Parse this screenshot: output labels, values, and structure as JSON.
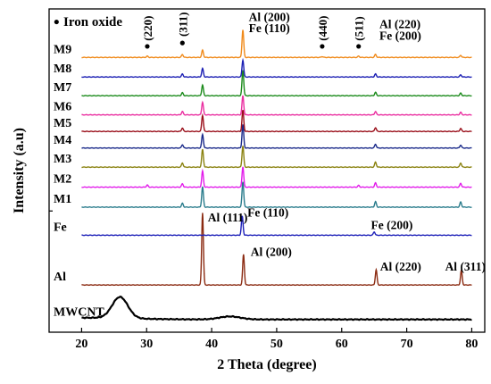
{
  "chart_data": {
    "type": "line",
    "xlabel": "2 Theta (degree)",
    "ylabel": "Intensity (a.u)",
    "xlim": [
      15,
      82
    ],
    "x_ticks": [
      20,
      30,
      40,
      50,
      60,
      70,
      80
    ],
    "grid": false,
    "legend": {
      "symbol": "•",
      "label": "Iron oxide",
      "placement": "top-left"
    },
    "series": [
      {
        "name": "MWCNT",
        "color": "#000000",
        "kind": "cnt",
        "baseline": 0,
        "peaks": [
          {
            "x": 25.9,
            "h": 0.5
          },
          {
            "x": 42.8,
            "h": 0.07
          }
        ]
      },
      {
        "name": "Al",
        "color": "#8b2b12",
        "kind": "xrd",
        "baseline": 0.81,
        "peaks": [
          {
            "x": 38.6,
            "h": 1.7
          },
          {
            "x": 44.9,
            "h": 0.72
          },
          {
            "x": 65.3,
            "h": 0.36
          },
          {
            "x": 78.4,
            "h": 0.34
          }
        ]
      },
      {
        "name": "Fe",
        "color": "#1c1fb8",
        "kind": "xrd",
        "baseline": 1.98,
        "peaks": [
          {
            "x": 44.7,
            "h": 0.45
          },
          {
            "x": 65.0,
            "h": 0.08
          }
        ]
      },
      {
        "name": "M1",
        "color": "#2a7c8c",
        "kind": "xrd",
        "baseline": 2.64,
        "peaks": [
          {
            "x": 35.5,
            "h": 0.09
          },
          {
            "x": 38.6,
            "h": 0.48
          },
          {
            "x": 44.8,
            "h": 0.6
          },
          {
            "x": 65.2,
            "h": 0.13
          },
          {
            "x": 78.3,
            "h": 0.12
          }
        ]
      },
      {
        "name": "M2",
        "color": "#e21bea",
        "kind": "xrd",
        "baseline": 3.11,
        "peaks": [
          {
            "x": 30.1,
            "h": 0.05
          },
          {
            "x": 35.5,
            "h": 0.08
          },
          {
            "x": 38.6,
            "h": 0.38
          },
          {
            "x": 44.8,
            "h": 0.48
          },
          {
            "x": 62.6,
            "h": 0.04
          },
          {
            "x": 65.2,
            "h": 0.1
          },
          {
            "x": 78.3,
            "h": 0.09
          }
        ]
      },
      {
        "name": "M3",
        "color": "#8a8210",
        "kind": "xrd",
        "baseline": 3.58,
        "peaks": [
          {
            "x": 35.5,
            "h": 0.1
          },
          {
            "x": 38.6,
            "h": 0.42
          },
          {
            "x": 44.8,
            "h": 0.5
          },
          {
            "x": 65.2,
            "h": 0.12
          },
          {
            "x": 78.3,
            "h": 0.1
          }
        ]
      },
      {
        "name": "M4",
        "color": "#1a2a8a",
        "kind": "xrd",
        "baseline": 4.03,
        "peaks": [
          {
            "x": 35.5,
            "h": 0.08
          },
          {
            "x": 38.6,
            "h": 0.32
          },
          {
            "x": 44.8,
            "h": 0.55
          },
          {
            "x": 65.2,
            "h": 0.09
          },
          {
            "x": 78.3,
            "h": 0.07
          }
        ]
      },
      {
        "name": "M5",
        "color": "#9a0f1a",
        "kind": "xrd",
        "baseline": 4.42,
        "peaks": [
          {
            "x": 35.5,
            "h": 0.08
          },
          {
            "x": 38.6,
            "h": 0.38
          },
          {
            "x": 44.8,
            "h": 0.5
          },
          {
            "x": 65.2,
            "h": 0.09
          },
          {
            "x": 78.3,
            "h": 0.07
          }
        ]
      },
      {
        "name": "M6",
        "color": "#ea2ea0",
        "kind": "xrd",
        "baseline": 4.81,
        "peaks": [
          {
            "x": 35.5,
            "h": 0.08
          },
          {
            "x": 38.6,
            "h": 0.3
          },
          {
            "x": 44.8,
            "h": 0.45
          },
          {
            "x": 65.2,
            "h": 0.08
          },
          {
            "x": 78.3,
            "h": 0.06
          }
        ]
      },
      {
        "name": "M7",
        "color": "#1a8a1a",
        "kind": "xrd",
        "baseline": 5.26,
        "peaks": [
          {
            "x": 35.5,
            "h": 0.07
          },
          {
            "x": 38.6,
            "h": 0.25
          },
          {
            "x": 44.8,
            "h": 0.6
          },
          {
            "x": 65.2,
            "h": 0.08
          },
          {
            "x": 78.3,
            "h": 0.06
          }
        ]
      },
      {
        "name": "M8",
        "color": "#1c20b4",
        "kind": "xrd",
        "baseline": 5.7,
        "peaks": [
          {
            "x": 35.5,
            "h": 0.07
          },
          {
            "x": 38.6,
            "h": 0.2
          },
          {
            "x": 44.8,
            "h": 0.4
          },
          {
            "x": 65.2,
            "h": 0.07
          },
          {
            "x": 78.3,
            "h": 0.05
          }
        ]
      },
      {
        "name": "M9",
        "color": "#f08a1a",
        "kind": "xrd",
        "baseline": 6.16,
        "peaks": [
          {
            "x": 30.1,
            "h": 0.03
          },
          {
            "x": 35.5,
            "h": 0.07
          },
          {
            "x": 38.6,
            "h": 0.17
          },
          {
            "x": 44.8,
            "h": 0.65
          },
          {
            "x": 57.0,
            "h": 0.02
          },
          {
            "x": 62.6,
            "h": 0.03
          },
          {
            "x": 65.2,
            "h": 0.07
          },
          {
            "x": 78.3,
            "h": 0.05
          }
        ]
      }
    ],
    "annotations": [
      {
        "text": "(220)",
        "x": 30.1,
        "y": 6.55,
        "rotate": true,
        "dot_y": 6.42
      },
      {
        "text": "(311)",
        "x": 35.5,
        "y": 6.65,
        "rotate": true,
        "dot_y": 6.5
      },
      {
        "text": "(440)",
        "x": 57.0,
        "y": 6.55,
        "rotate": true,
        "dot_y": 6.42
      },
      {
        "text": "(511)",
        "x": 62.6,
        "y": 6.55,
        "rotate": true,
        "dot_y": 6.42
      },
      {
        "text": "Al (200)",
        "x": 45.7,
        "y": 7.02
      },
      {
        "text": "Fe (110)",
        "x": 45.7,
        "y": 6.75
      },
      {
        "text": "Al (220)",
        "x": 65.8,
        "y": 6.85
      },
      {
        "text": "Fe (200)",
        "x": 65.8,
        "y": 6.58
      },
      {
        "text": "Fe (110)",
        "x": 45.5,
        "y": 2.42
      },
      {
        "text": "Fe (200)",
        "x": 64.5,
        "y": 2.12
      },
      {
        "text": "Al (111)",
        "x": 39.4,
        "y": 2.3
      },
      {
        "text": "Al (200)",
        "x": 46.0,
        "y": 1.5
      },
      {
        "text": "Al (220)",
        "x": 65.9,
        "y": 1.15
      },
      {
        "text": "Al (311)",
        "x": 75.9,
        "y": 1.15
      }
    ]
  }
}
